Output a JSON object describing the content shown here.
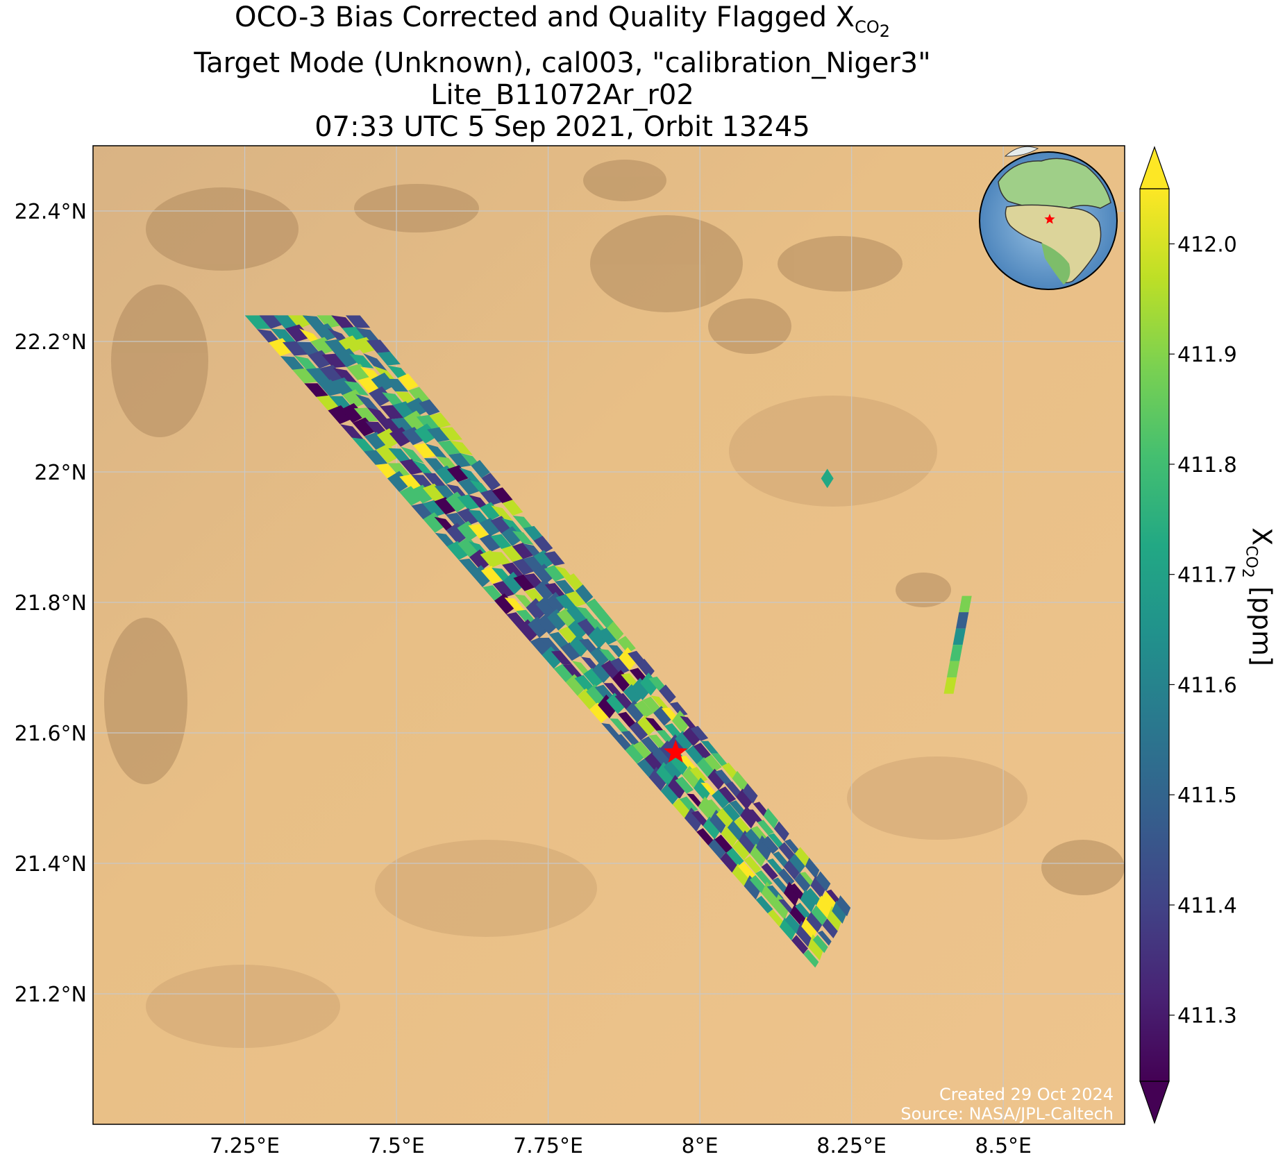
{
  "title": {
    "line1_prefix": "OCO-3 Bias Corrected and Quality Flagged X",
    "line1_sub": "CO",
    "line1_sub2": "2",
    "line2": "Target Mode (Unknown), cal003, \"calibration_Niger3\"",
    "line3": "Lite_B11072Ar_r02",
    "line4": "07:33 UTC 5 Sep 2021, Orbit 13245"
  },
  "axes": {
    "lon_ticks": [
      {
        "value": 7.25,
        "label": "7.25°E"
      },
      {
        "value": 7.5,
        "label": "7.5°E"
      },
      {
        "value": 7.75,
        "label": "7.75°E"
      },
      {
        "value": 8.0,
        "label": "8°E"
      },
      {
        "value": 8.25,
        "label": "8.25°E"
      },
      {
        "value": 8.5,
        "label": "8.5°E"
      }
    ],
    "lat_ticks": [
      {
        "value": 22.4,
        "label": "22.4°N"
      },
      {
        "value": 22.2,
        "label": "22.2°N"
      },
      {
        "value": 22.0,
        "label": "22°N"
      },
      {
        "value": 21.8,
        "label": "21.8°N"
      },
      {
        "value": 21.6,
        "label": "21.6°N"
      },
      {
        "value": 21.4,
        "label": "21.4°N"
      },
      {
        "value": 21.2,
        "label": "21.2°N"
      }
    ],
    "lon_range": [
      7.0,
      8.7
    ],
    "lat_range": [
      21.0,
      22.5
    ]
  },
  "colorbar": {
    "label_prefix": "X",
    "label_sub": "CO",
    "label_sub2": "2",
    "label_suffix": " [ppm]",
    "colormap": "viridis",
    "range": [
      411.24,
      412.05
    ],
    "extend": "both",
    "ticks": [
      {
        "value": 411.3,
        "label": "411.3"
      },
      {
        "value": 411.4,
        "label": "411.4"
      },
      {
        "value": 411.5,
        "label": "411.5"
      },
      {
        "value": 411.6,
        "label": "411.6"
      },
      {
        "value": 411.7,
        "label": "411.7"
      },
      {
        "value": 411.8,
        "label": "411.8"
      },
      {
        "value": 411.9,
        "label": "411.9"
      },
      {
        "value": 412.0,
        "label": "412.0"
      }
    ]
  },
  "map_features": {
    "background": "satellite imagery, Sahara desert sand",
    "target_marker": {
      "icon": "red-star-icon",
      "lon": 7.96,
      "lat": 21.57,
      "color": "#ff0000"
    },
    "inset_globe": {
      "icon": "globe-icon",
      "marker_color": "#ff0000"
    },
    "swath_main": {
      "corners": [
        [
          7.25,
          22.24
        ],
        [
          7.44,
          22.24
        ],
        [
          8.25,
          21.33
        ],
        [
          8.19,
          21.24
        ]
      ]
    },
    "swath_small_1": {
      "center": [
        8.21,
        21.99
      ],
      "value": 411.75
    },
    "swath_small_2": {
      "from": [
        8.44,
        21.81
      ],
      "to": [
        8.41,
        21.66
      ]
    }
  },
  "credits": {
    "line1": "Created 29 Oct 2024",
    "line2": "Source: NASA/JPL-Caltech"
  },
  "colors": {
    "target_star": "#ff0000",
    "viridis_low": "#440154",
    "viridis_mid": "#21918c",
    "viridis_high": "#fde725"
  }
}
